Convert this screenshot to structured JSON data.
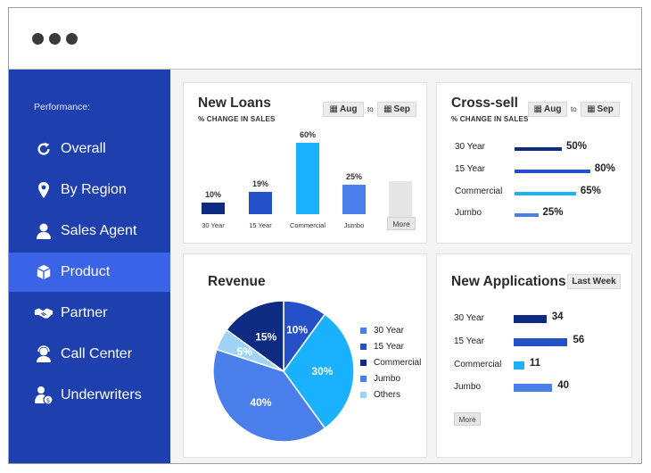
{
  "sidebar": {
    "heading": "Performance:",
    "items": [
      {
        "label": "Overall",
        "icon": "refresh-icon"
      },
      {
        "label": "By Region",
        "icon": "location-pin-icon"
      },
      {
        "label": "Sales Agent",
        "icon": "user-icon"
      },
      {
        "label": "Product",
        "icon": "box-icon",
        "active": true
      },
      {
        "label": "Partner",
        "icon": "handshake-icon"
      },
      {
        "label": "Call Center",
        "icon": "headset-agent-icon"
      },
      {
        "label": "Underwriters",
        "icon": "user-money-icon"
      }
    ]
  },
  "new_loans": {
    "title": "New Loans",
    "subtitle": "% CHANGE IN SALES",
    "from": "Aug",
    "to_label": "to",
    "to": "Sep",
    "more": "More",
    "chart_data": {
      "type": "bar",
      "categories": [
        "30 Year",
        "15 Year",
        "Commercial",
        "Jumbo"
      ],
      "values": [
        10,
        19,
        60,
        25
      ],
      "value_labels": [
        "10%",
        "19%",
        "60%",
        "25%"
      ],
      "colors": [
        "#0d2b80",
        "#2450c8",
        "#1ab1ff",
        "#4a7ee8"
      ]
    }
  },
  "cross_sell": {
    "title": "Cross-sell",
    "subtitle": "% CHANGE IN SALES",
    "from": "Aug",
    "to_label": "to",
    "to": "Sep",
    "chart_data": {
      "type": "bar",
      "orientation": "horizontal",
      "categories": [
        "30 Year",
        "15 Year",
        "Commercial",
        "Jumbo"
      ],
      "values": [
        50,
        80,
        65,
        25
      ],
      "value_labels": [
        "50%",
        "80%",
        "65%",
        "25%"
      ],
      "colors": [
        "#0d2b80",
        "#2450c8",
        "#1ab1ff",
        "#4a7ee8"
      ]
    }
  },
  "revenue": {
    "title": "Revenue",
    "chart_data": {
      "type": "pie",
      "categories": [
        "30 Year",
        "15 Year",
        "Commercial",
        "Jumbo",
        "Others"
      ],
      "values": [
        10,
        30,
        40,
        5,
        15
      ],
      "value_labels": [
        "10%",
        "30%",
        "40%",
        "5%",
        "15%"
      ],
      "legend": [
        "30 Year",
        "15 Year",
        "Commercial",
        "Jumbo",
        "Others"
      ],
      "legend_colors": [
        "#4a7ee8",
        "#2450c8",
        "#0d2b80",
        "#4a7ee8",
        "#9fd4f7"
      ],
      "slice_colors": [
        "#2450c8",
        "#1ab1ff",
        "#4a7ee8",
        "#9fd4f7",
        "#0d2b80"
      ]
    }
  },
  "new_applications": {
    "title": "New Applications",
    "period": "Last Week",
    "more": "More",
    "chart_data": {
      "type": "bar",
      "orientation": "horizontal",
      "categories": [
        "30 Year",
        "15 Year",
        "Commercial",
        "Jumbo"
      ],
      "values": [
        34,
        56,
        11,
        40
      ],
      "colors": [
        "#0d2b80",
        "#2450c8",
        "#1ab1ff",
        "#4a7ee8"
      ]
    }
  }
}
